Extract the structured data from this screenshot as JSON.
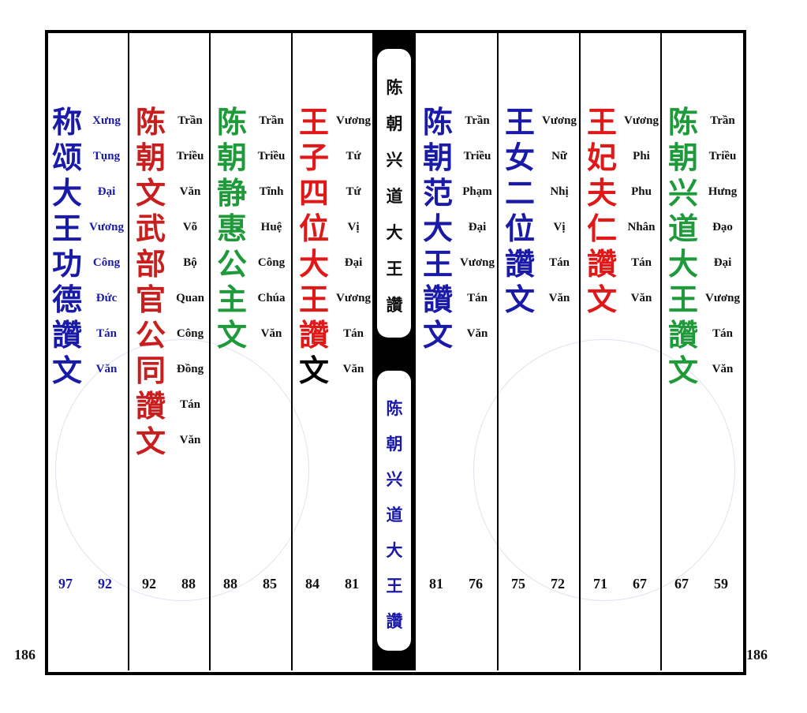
{
  "side_numbers": {
    "left": 186,
    "right": 186
  },
  "columns": [
    {
      "color": "#1a1aa8",
      "number_color": "#1a1aa8",
      "reading_color": "#1a1aa8",
      "chars": [
        "称",
        "颂",
        "大",
        "王",
        "功",
        "德",
        "讚",
        "文"
      ],
      "reading": [
        "Xưng",
        "Tụng",
        "Đại",
        "Vương",
        "Công",
        "Đức",
        "Tán",
        "Văn"
      ],
      "numbers": [
        97,
        92
      ]
    },
    {
      "color": "#c81e1e",
      "chars": [
        "陈",
        "朝",
        "文",
        "武",
        "部",
        "官",
        "公",
        "同",
        "讚",
        "文"
      ],
      "reading": [
        "Trần",
        "Triều",
        "Văn",
        "Võ",
        "Bộ",
        "Quan",
        "Công",
        "Đồng",
        "Tán",
        "Văn"
      ],
      "numbers": [
        92,
        88
      ]
    },
    {
      "color": "#1f9a3a",
      "chars": [
        "陈",
        "朝",
        "静",
        "惠",
        "公",
        "主",
        "文"
      ],
      "reading": [
        "Trần",
        "Triều",
        "Tĩnh",
        "Huệ",
        "Công",
        "Chúa",
        "Văn"
      ],
      "numbers": [
        88,
        85
      ]
    },
    {
      "color": "#e01818",
      "char_colors": [
        "#e01818",
        "#e01818",
        "#e01818",
        "#e01818",
        "#e01818",
        "#e01818",
        "#e01818",
        "#000000"
      ],
      "chars": [
        "王",
        "子",
        "四",
        "位",
        "大",
        "王",
        "讚",
        "文"
      ],
      "reading": [
        "Vương",
        "Tứ",
        "Tứ",
        "Vị",
        "Đại",
        "Vương",
        "Tán",
        "Văn"
      ],
      "numbers": [
        84,
        81
      ]
    },
    {
      "color": "#1a1aa8",
      "chars": [
        "陈",
        "朝",
        "范",
        "大",
        "王",
        "讚",
        "文"
      ],
      "reading": [
        "Trần",
        "Triều",
        "Phạm",
        "Đại",
        "Vương",
        "Tán",
        "Văn"
      ],
      "numbers": [
        81,
        76
      ]
    },
    {
      "color": "#1a1aa8",
      "chars": [
        "王",
        "女",
        "二",
        "位",
        "讚",
        "文"
      ],
      "reading": [
        "Vương",
        "Nữ",
        "Nhị",
        "Vị",
        "Tán",
        "Văn"
      ],
      "numbers": [
        75,
        72
      ]
    },
    {
      "color": "#e01818",
      "chars": [
        "王",
        "妃",
        "夫",
        "仁",
        "讚",
        "文"
      ],
      "reading": [
        "Vương",
        "Phi",
        "Phu",
        "Nhân",
        "Tán",
        "Văn"
      ],
      "numbers": [
        71,
        67
      ]
    },
    {
      "color": "#1f9a3a",
      "chars": [
        "陈",
        "朝",
        "兴",
        "道",
        "大",
        "王",
        "讚",
        "文"
      ],
      "reading": [
        "Trần",
        "Triều",
        "Hưng",
        "Đạo",
        "Đại",
        "Vương",
        "Tán",
        "Văn"
      ],
      "numbers": [
        67,
        59
      ]
    }
  ],
  "center": {
    "top_color": "#111111",
    "bottom_color": "#1a1aa8",
    "top": [
      "陈",
      "朝",
      "兴",
      "道",
      "大",
      "王",
      "讚"
    ],
    "bottom": [
      "陈",
      "朝",
      "兴",
      "道",
      "大",
      "王",
      "讚"
    ]
  }
}
